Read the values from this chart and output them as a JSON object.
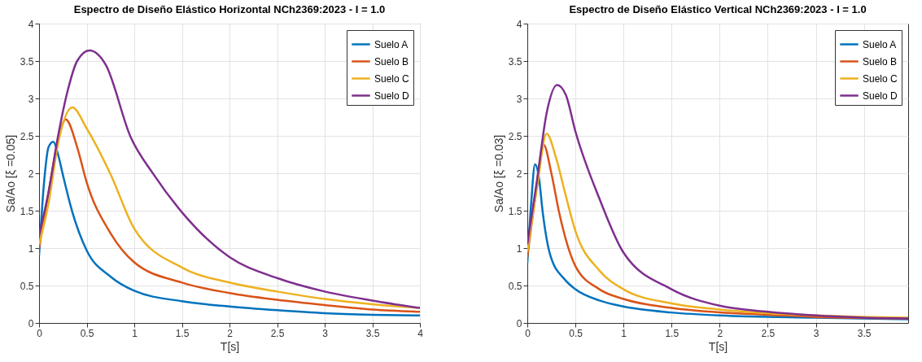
{
  "chart_data": [
    {
      "type": "line",
      "title": "Espectro de Diseño Elástico Horizontal NCh2369:2023 - I = 1.0",
      "xlabel": "T[s]",
      "ylabel": "Sa/Ao [ξ =0.05]",
      "xlim": [
        0,
        4
      ],
      "ylim": [
        0,
        4
      ],
      "xticks": [
        0,
        0.5,
        1,
        1.5,
        2,
        2.5,
        3,
        3.5,
        4
      ],
      "yticks": [
        0,
        0.5,
        1,
        1.5,
        2,
        2.5,
        3,
        3.5,
        4
      ],
      "grid": true,
      "legend": "top right",
      "marker": "none",
      "line_style": "solid",
      "series": [
        {
          "name": "Suelo A",
          "color": "#0072bd",
          "x": [
            0,
            0.05,
            0.1,
            0.15,
            0.2,
            0.25,
            0.35,
            0.5,
            0.75,
            1,
            1.5,
            2,
            2.5,
            3,
            3.5,
            4
          ],
          "values": [
            0.9,
            1.84,
            2.35,
            2.42,
            2.25,
            1.98,
            1.48,
            0.97,
            0.62,
            0.43,
            0.29,
            0.22,
            0.17,
            0.13,
            0.11,
            0.1
          ]
        },
        {
          "name": "Suelo B",
          "color": "#d95319",
          "x": [
            0,
            0.1,
            0.2,
            0.28,
            0.4,
            0.5,
            0.75,
            1,
            1.5,
            2,
            2.5,
            3,
            3.5,
            4
          ],
          "values": [
            1.0,
            1.75,
            2.45,
            2.72,
            2.35,
            1.88,
            1.2,
            0.81,
            0.54,
            0.4,
            0.31,
            0.24,
            0.18,
            0.15
          ]
        },
        {
          "name": "Suelo C",
          "color": "#edb120",
          "x": [
            0,
            0.1,
            0.2,
            0.35,
            0.5,
            0.75,
            1,
            1.5,
            2,
            2.5,
            3,
            3.5,
            4
          ],
          "values": [
            1.05,
            1.6,
            2.4,
            2.88,
            2.6,
            1.99,
            1.26,
            0.74,
            0.54,
            0.42,
            0.32,
            0.25,
            0.2
          ]
        },
        {
          "name": "Suelo D",
          "color": "#7e2f8e",
          "x": [
            0,
            0.1,
            0.2,
            0.3,
            0.4,
            0.53,
            0.7,
            0.96,
            1.2,
            1.5,
            2,
            2.5,
            3,
            3.5,
            4
          ],
          "values": [
            1.18,
            1.75,
            2.5,
            3.1,
            3.5,
            3.64,
            3.45,
            2.49,
            1.99,
            1.48,
            0.88,
            0.6,
            0.42,
            0.3,
            0.2
          ]
        }
      ]
    },
    {
      "type": "line",
      "title": "Espectro de Diseño Elástico Vertical NCh2369:2023 - I = 1.0",
      "xlabel": "T[s]",
      "ylabel": "Sa/Ao [ξ =0.03]",
      "xlim": [
        0,
        3.96
      ],
      "ylim": [
        0,
        4
      ],
      "xticks": [
        0,
        0.5,
        1,
        1.5,
        2,
        2.5,
        3,
        3.5
      ],
      "yticks": [
        0,
        0.5,
        1,
        1.5,
        2,
        2.5,
        3,
        3.5,
        4
      ],
      "grid": true,
      "legend": "top right",
      "marker": "none",
      "line_style": "solid",
      "series": [
        {
          "name": "Suelo A",
          "color": "#0072bd",
          "x": [
            0,
            0.04,
            0.08,
            0.12,
            0.16,
            0.24,
            0.39,
            0.5,
            0.75,
            1,
            1.5,
            2,
            3,
            3.96
          ],
          "values": [
            0.8,
            1.6,
            2.12,
            1.95,
            1.48,
            0.9,
            0.58,
            0.45,
            0.3,
            0.22,
            0.14,
            0.1,
            0.07,
            0.05
          ]
        },
        {
          "name": "Suelo B",
          "color": "#d95319",
          "x": [
            0,
            0.08,
            0.17,
            0.25,
            0.33,
            0.5,
            0.75,
            1,
            1.5,
            2,
            2.5,
            3,
            3.96
          ],
          "values": [
            0.88,
            1.65,
            2.38,
            2.0,
            1.48,
            0.76,
            0.45,
            0.32,
            0.2,
            0.14,
            0.11,
            0.08,
            0.06
          ]
        },
        {
          "name": "Suelo C",
          "color": "#edb120",
          "x": [
            0,
            0.1,
            0.2,
            0.3,
            0.4,
            0.5,
            0.75,
            1,
            1.5,
            2,
            2.5,
            3,
            3.96
          ],
          "values": [
            0.95,
            1.8,
            2.53,
            2.2,
            1.7,
            1.23,
            0.7,
            0.45,
            0.26,
            0.18,
            0.13,
            0.1,
            0.07
          ]
        },
        {
          "name": "Suelo D",
          "color": "#7e2f8e",
          "x": [
            0,
            0.1,
            0.2,
            0.31,
            0.4,
            0.5,
            0.75,
            1,
            1.5,
            2,
            2.5,
            3,
            3.5,
            3.96
          ],
          "values": [
            1.05,
            1.9,
            2.8,
            3.18,
            3.05,
            2.56,
            1.66,
            0.94,
            0.45,
            0.23,
            0.15,
            0.1,
            0.07,
            0.06
          ]
        }
      ]
    }
  ]
}
